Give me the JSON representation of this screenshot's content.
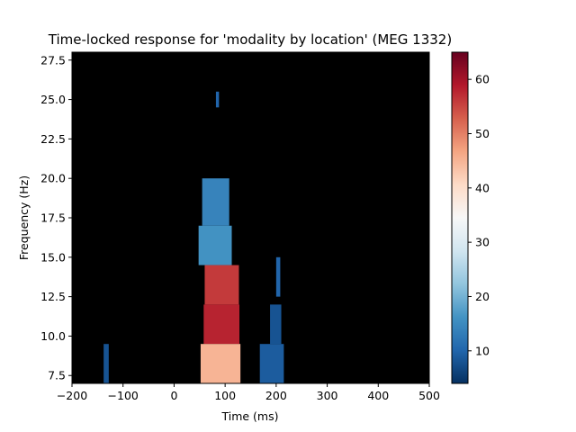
{
  "chart_data": {
    "type": "heatmap",
    "title": "Time-locked response for 'modality by location' (MEG 1332)",
    "xlabel": "Time (ms)",
    "ylabel": "Frequency (Hz)",
    "xlim": [
      -200,
      500
    ],
    "ylim": [
      7.0,
      28.0
    ],
    "x_ticks": [
      "−200",
      "−100",
      "0",
      "100",
      "200",
      "300",
      "400",
      "500"
    ],
    "x_tick_values": [
      -200,
      -100,
      0,
      100,
      200,
      300,
      400,
      500
    ],
    "y_ticks": [
      "7.5",
      "10.0",
      "12.5",
      "15.0",
      "17.5",
      "20.0",
      "22.5",
      "25.0",
      "27.5"
    ],
    "y_tick_values": [
      7.5,
      10.0,
      12.5,
      15.0,
      17.5,
      20.0,
      22.5,
      25.0,
      27.5
    ],
    "colormap": "RdBu_r",
    "colormap_stops": [
      "#053061",
      "#2166ac",
      "#4393c3",
      "#92c5de",
      "#d1e5f0",
      "#f7f7f7",
      "#fddbc7",
      "#f4a582",
      "#d6604d",
      "#b2182b",
      "#67001f"
    ],
    "background_color": "#000000",
    "colorbar": {
      "range": [
        4,
        65
      ],
      "ticks": [
        "10",
        "20",
        "30",
        "40",
        "50",
        "60"
      ],
      "tick_values": [
        10,
        20,
        30,
        40,
        50,
        60
      ]
    },
    "significant_regions": [
      {
        "freq": [
          7.0,
          9.5
        ],
        "time": [
          -138,
          -128
        ],
        "value": 8
      },
      {
        "freq": [
          24.5,
          25.5
        ],
        "time": [
          82,
          88
        ],
        "value": 10
      },
      {
        "freq": [
          17.0,
          20.0
        ],
        "time": [
          55,
          108
        ],
        "value": 14
      },
      {
        "freq": [
          14.5,
          17.0
        ],
        "time": [
          48,
          113
        ],
        "value": 16
      },
      {
        "freq": [
          12.0,
          14.5
        ],
        "time": [
          60,
          127
        ],
        "value": 56
      },
      {
        "freq": [
          9.5,
          12.0
        ],
        "time": [
          58,
          128
        ],
        "value": 58
      },
      {
        "freq": [
          7.0,
          9.5
        ],
        "time": [
          52,
          130
        ],
        "value": 45
      },
      {
        "freq": [
          12.5,
          15.0
        ],
        "time": [
          200,
          208
        ],
        "value": 10
      },
      {
        "freq": [
          9.5,
          12.0
        ],
        "time": [
          188,
          210
        ],
        "value": 8
      },
      {
        "freq": [
          7.0,
          9.5
        ],
        "time": [
          168,
          215
        ],
        "value": 9
      }
    ]
  }
}
